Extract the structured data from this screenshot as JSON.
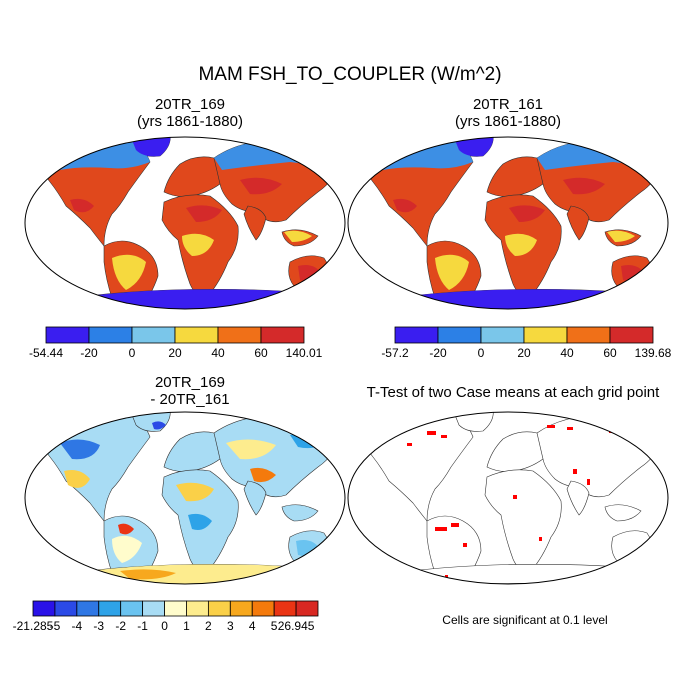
{
  "figure": {
    "title": "MAM FSH_TO_COUPLER (W/m^2)",
    "note": "Cells are significant at 0.1 level"
  },
  "panels": [
    {
      "id": "case1",
      "title_line1": "20TR_169",
      "title_line2": "(yrs 1861-1880)",
      "colorbar": {
        "labels": [
          "-54.44",
          "-20",
          "0",
          "20",
          "40",
          "60",
          "140.01"
        ],
        "colors": [
          "#3a1ef0",
          "#2c80e6",
          "#7ac6ea",
          "#f6d93e",
          "#f07018",
          "#d42a2a"
        ]
      }
    },
    {
      "id": "case2",
      "title_line1": "20TR_161",
      "title_line2": "(yrs 1861-1880)",
      "colorbar": {
        "labels": [
          "-57.2",
          "-20",
          "0",
          "20",
          "40",
          "60",
          "139.68"
        ],
        "colors": [
          "#3a1ef0",
          "#2c80e6",
          "#7ac6ea",
          "#f6d93e",
          "#f07018",
          "#d42a2a"
        ]
      }
    },
    {
      "id": "difference",
      "title_line1": "20TR_169",
      "title_line2": "- 20TR_161",
      "colorbar": {
        "labels": [
          "-21.285",
          "-5",
          "-4",
          "-3",
          "-2",
          "-1",
          "0",
          "1",
          "2",
          "3",
          "4",
          "5",
          "26.945"
        ],
        "colors": [
          "#2a12e8",
          "#2b4ae6",
          "#2f77e4",
          "#2ea3e8",
          "#6ac3f0",
          "#a8dcf4",
          "#fffccc",
          "#fdec8e",
          "#fad048",
          "#f7a81e",
          "#f47a0c",
          "#ea3414",
          "#d82822"
        ]
      }
    },
    {
      "id": "ttest",
      "title_line1": "T-Test of two Case means at each grid point",
      "sig_color": "#ff0000"
    }
  ]
}
